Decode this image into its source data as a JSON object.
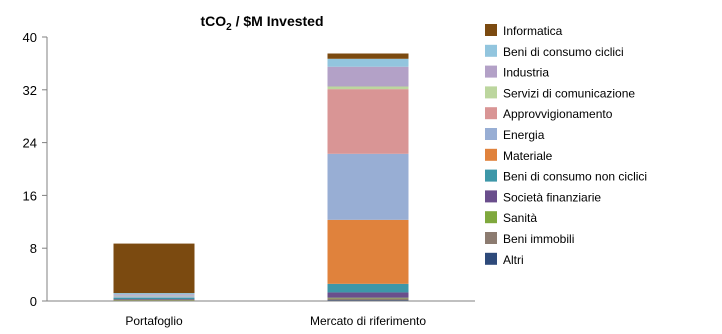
{
  "chart_data": {
    "type": "bar",
    "stacked": true,
    "title": "tCO2 / $M Invested",
    "title_main": "tCO",
    "title_sub": "2",
    "title_rest": " / $M Invested",
    "xlabel": "",
    "ylabel": "",
    "ylim": [
      0,
      40
    ],
    "yticks": [
      "0",
      "8",
      "16",
      "24",
      "32",
      "40"
    ],
    "ytick_values": [
      0,
      8,
      16,
      24,
      32,
      40
    ],
    "grid": false,
    "legend_position": "right",
    "categories": [
      "Portafoglio",
      "Mercato di riferimento"
    ],
    "series": [
      {
        "name": "Altri",
        "color": "#2e4a7a",
        "values": [
          0.0,
          0.1
        ]
      },
      {
        "name": "Beni immobili",
        "color": "#8c7b70",
        "values": [
          0.1,
          0.3
        ]
      },
      {
        "name": "Sanità",
        "color": "#7fa83d",
        "values": [
          0.1,
          0.1
        ]
      },
      {
        "name": "Società finanziarie",
        "color": "#6a4e8c",
        "values": [
          0.1,
          0.8
        ]
      },
      {
        "name": "Beni di consumo non ciclici",
        "color": "#3d97a8",
        "values": [
          0.2,
          1.3
        ]
      },
      {
        "name": "Materiale",
        "color": "#e0823c",
        "values": [
          0.0,
          9.7
        ]
      },
      {
        "name": "Energia",
        "color": "#98aed4",
        "values": [
          0.2,
          10.0
        ]
      },
      {
        "name": "Approvvigionamento",
        "color": "#d99595",
        "values": [
          0.0,
          9.8
        ]
      },
      {
        "name": "Servizi di comunicazione",
        "color": "#bcd69e",
        "values": [
          0.1,
          0.4
        ]
      },
      {
        "name": "Industria",
        "color": "#b3a1c7",
        "values": [
          0.2,
          3.0
        ]
      },
      {
        "name": "Beni di consumo ciclici",
        "color": "#92c5de",
        "values": [
          0.2,
          1.2
        ]
      },
      {
        "name": "Informatica",
        "color": "#7b4a10",
        "values": [
          7.5,
          0.8
        ]
      }
    ]
  }
}
